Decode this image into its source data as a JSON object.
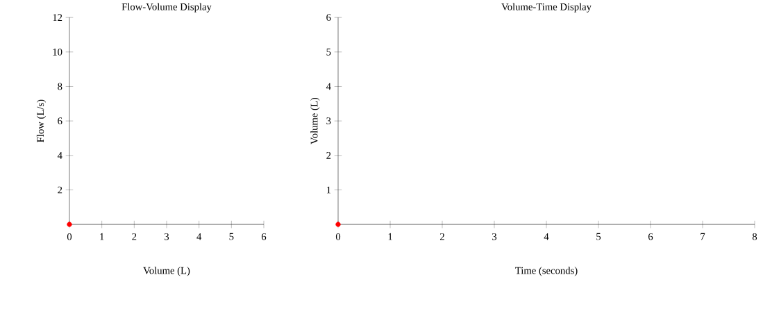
{
  "chart_data": [
    {
      "type": "scatter",
      "title": "Flow-Volume Display",
      "xlabel": "Volume (L)",
      "ylabel": "Flow (L/s)",
      "x": [
        0
      ],
      "values": [
        0
      ],
      "color": "#ff0000",
      "xlim": [
        0,
        6
      ],
      "ylim": [
        0,
        12
      ],
      "xticks": [
        0,
        1,
        2,
        3,
        4,
        5,
        6
      ],
      "yticks": [
        2,
        4,
        6,
        8,
        10,
        12
      ]
    },
    {
      "type": "scatter",
      "title": "Volume-Time Display",
      "xlabel": "Time (seconds)",
      "ylabel": "Volume (L)",
      "x": [
        0
      ],
      "values": [
        0
      ],
      "color": "#ff0000",
      "xlim": [
        0,
        8
      ],
      "ylim": [
        0,
        6
      ],
      "xticks": [
        0,
        1,
        2,
        3,
        4,
        5,
        6,
        7,
        8
      ],
      "yticks": [
        1,
        2,
        3,
        4,
        5,
        6
      ]
    }
  ]
}
